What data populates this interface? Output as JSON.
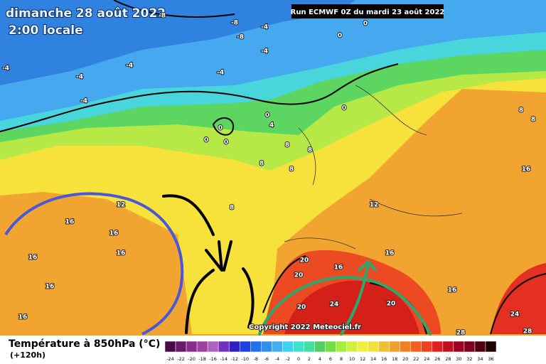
{
  "header": {
    "date": "dimanche 28 août 2022",
    "time": "2:00 locale",
    "run": "Run ECMWF 0Z du mardi 23 août 2022"
  },
  "map": {
    "contour_labels": [
      -8,
      -8,
      -4,
      -8,
      -4,
      0,
      0,
      -4,
      -4,
      -4,
      -4,
      -4,
      0,
      4,
      0,
      0,
      0,
      0,
      8,
      8,
      8,
      8,
      8,
      8,
      8,
      12,
      12,
      16,
      16,
      16,
      16,
      16,
      16,
      16,
      16,
      16,
      20,
      20,
      16,
      20,
      24,
      20,
      24,
      28,
      28
    ],
    "copyright": "Copyright 2022 Meteociel.fr"
  },
  "legend": {
    "title": "Température à 850hPa (°C)",
    "lead": "(+120h)",
    "ticks": [
      -24,
      -22,
      -20,
      -18,
      -16,
      -14,
      -12,
      -10,
      -8,
      -6,
      -4,
      -2,
      0,
      2,
      4,
      6,
      8,
      10,
      12,
      14,
      16,
      18,
      20,
      22,
      24,
      26,
      28,
      30,
      32,
      34,
      36
    ],
    "colors": [
      "#4a0a4a",
      "#6a1a6a",
      "#8a2a8a",
      "#a040a0",
      "#b060c0",
      "#7030c0",
      "#3020c0",
      "#2040e0",
      "#2070f0",
      "#3090f0",
      "#40b0f0",
      "#40d0f0",
      "#40e0d0",
      "#40e0a0",
      "#50d060",
      "#70e040",
      "#a0f040",
      "#d0f040",
      "#f0f040",
      "#f0e040",
      "#f0c030",
      "#f0a030",
      "#f08020",
      "#f06020",
      "#f04020",
      "#e02020",
      "#c01020",
      "#a00020",
      "#800020",
      "#500010",
      "#200000"
    ]
  }
}
